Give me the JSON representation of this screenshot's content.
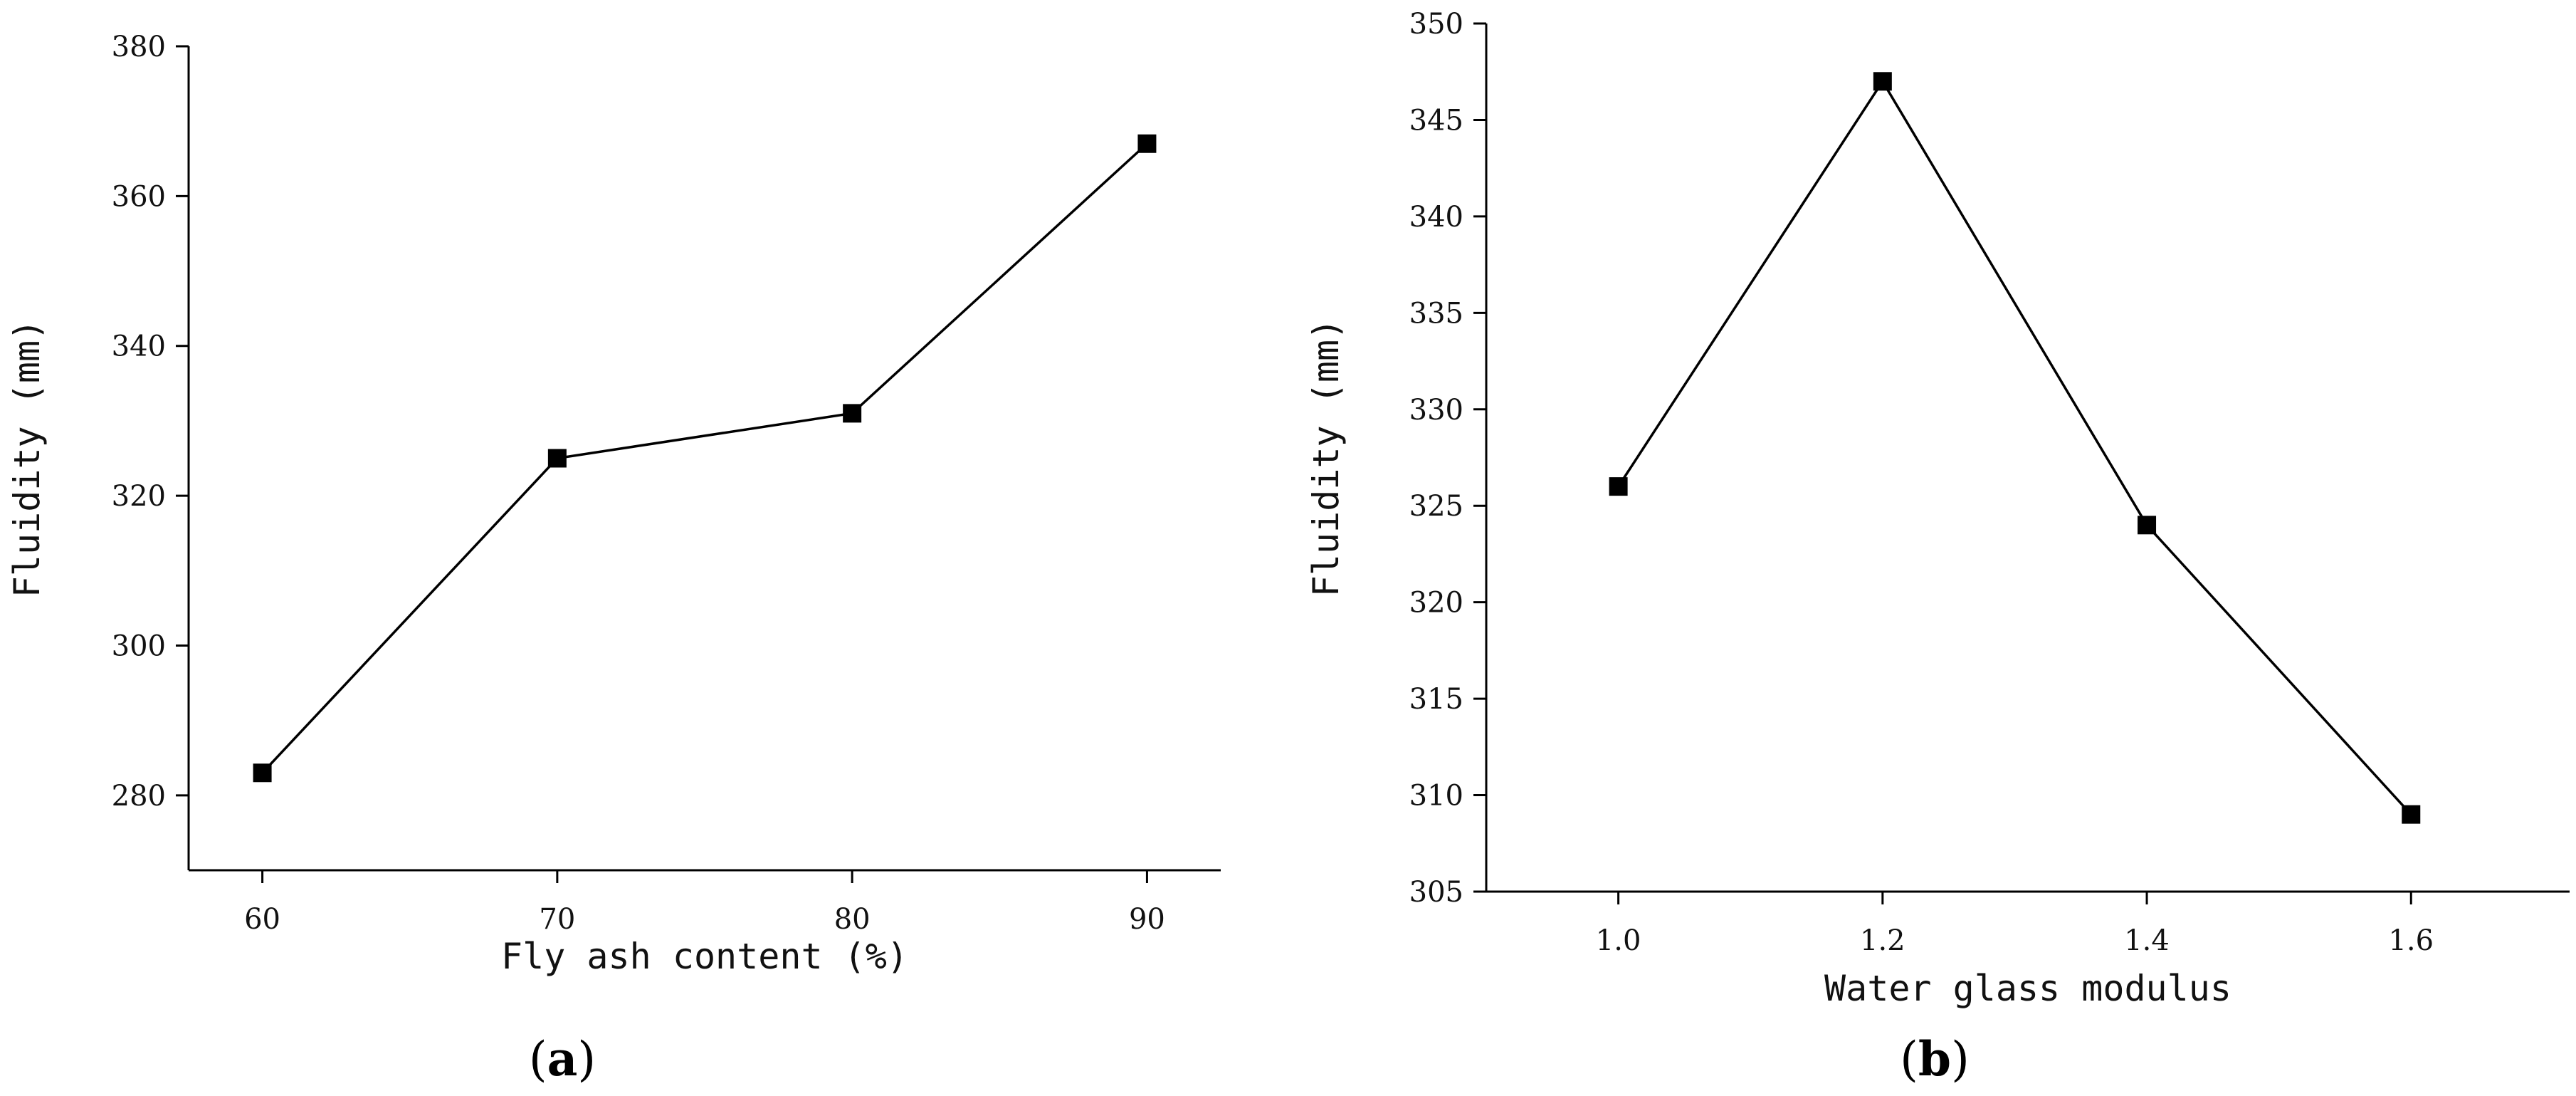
{
  "chart_data": [
    {
      "type": "line",
      "panel_label": "a",
      "xlabel": "Fly ash content (%)",
      "ylabel": "Fluidity (mm)",
      "x": [
        60,
        70,
        80,
        90
      ],
      "xticks": [
        "60",
        "70",
        "80",
        "90"
      ],
      "xlim": [
        57.5,
        92.5
      ],
      "ylim": [
        270,
        380
      ],
      "yticks": [
        280,
        300,
        320,
        340,
        360,
        380
      ],
      "series": [
        {
          "values": [
            283,
            325,
            331,
            367
          ]
        }
      ],
      "grid": false
    },
    {
      "type": "line",
      "panel_label": "b",
      "xlabel": "Water glass modulus",
      "ylabel": "Fluidity (mm)",
      "x": [
        1.0,
        1.2,
        1.4,
        1.6
      ],
      "xticks": [
        "1.0",
        "1.2",
        "1.4",
        "1.6"
      ],
      "xlim": [
        0.9,
        1.72
      ],
      "ylim": [
        305,
        350
      ],
      "yticks": [
        305,
        310,
        315,
        320,
        325,
        330,
        335,
        340,
        345,
        350
      ],
      "series": [
        {
          "values": [
            326,
            347,
            324,
            309
          ]
        }
      ],
      "grid": false
    }
  ]
}
